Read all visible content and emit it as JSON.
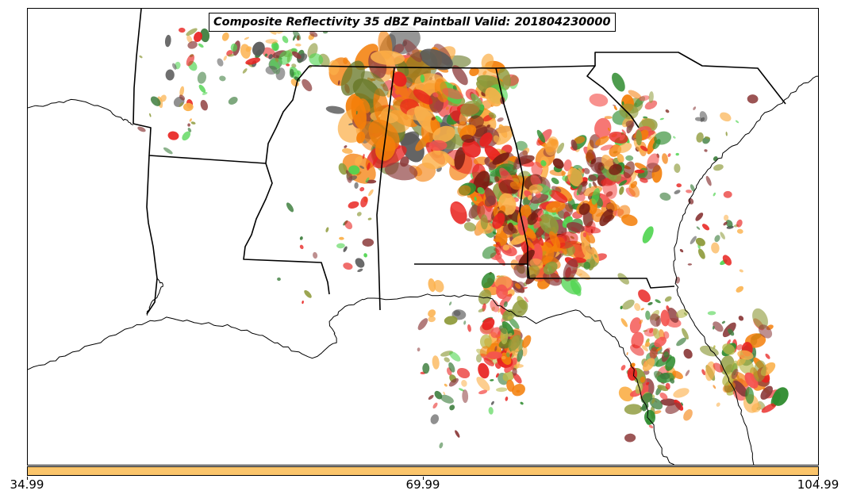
{
  "title": "Composite Reflectivity 35 dBZ Paintball Valid: 201804230000",
  "colorbar": {
    "color": "#fbc56b",
    "ticks": [
      "34.99",
      "69.99",
      "104.99"
    ]
  },
  "colors": {
    "orange": "#f47f0a",
    "light_orange": "#fbb04a",
    "red": "#e8221f",
    "light_red": "#f4534f",
    "dark_red": "#7a1f14",
    "maroon": "#8c3b3b",
    "green": "#2e8b2e",
    "light_green": "#4fd44f",
    "olive": "#8e9a3a",
    "yellow_olive": "#b8b84a",
    "dark_olive": "#6a7a2a",
    "gray": "#5a5a5a",
    "forest": "#3e7e3e"
  }
}
